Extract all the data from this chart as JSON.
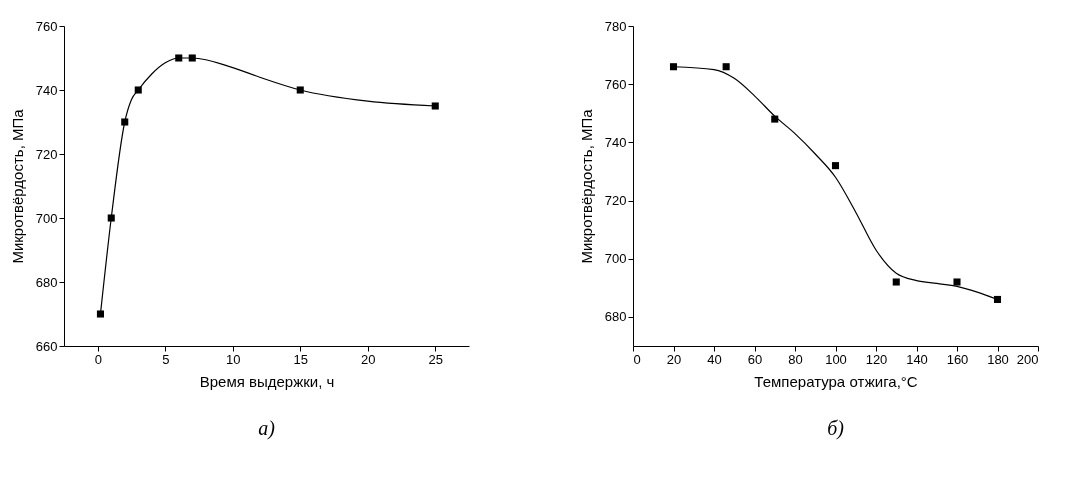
{
  "chart_data": [
    {
      "type": "scatter",
      "xlabel": "Время выдержки, ч",
      "ylabel": "Микротвёрдость, МПа",
      "annotations": [
        "а)"
      ],
      "xlim": [
        -2.5,
        27.5
      ],
      "xticks": [
        0,
        5,
        10,
        15,
        20,
        25
      ],
      "ylim": [
        660,
        760
      ],
      "yticks": [
        660,
        680,
        700,
        720,
        740,
        760
      ],
      "grid": false,
      "series": [
        {
          "type": "line",
          "color": "#000000",
          "x": [
            0.2,
            1,
            2,
            2.5,
            3,
            4,
            5,
            6,
            7,
            10,
            12,
            15,
            20,
            25
          ],
          "values": [
            670,
            700,
            730,
            737,
            740,
            745,
            748.5,
            750,
            750,
            747,
            744,
            740,
            736.5,
            735
          ]
        },
        {
          "marker": "square",
          "color": "#000000",
          "x": [
            0.2,
            1,
            2,
            3,
            6,
            7,
            15,
            25
          ],
          "values": [
            670,
            700,
            730,
            740,
            750,
            750,
            740,
            735
          ]
        }
      ]
    },
    {
      "type": "scatter",
      "xlabel": "Температура отжига,°C",
      "ylabel": "Микротвёрдость, МПа",
      "annotations": [
        "б)"
      ],
      "xlim": [
        0,
        200
      ],
      "xticks": [
        0,
        20,
        40,
        60,
        80,
        100,
        120,
        140,
        160,
        180,
        200
      ],
      "ylim": [
        670,
        780
      ],
      "yticks": [
        680,
        700,
        720,
        740,
        760,
        780
      ],
      "grid": false,
      "series": [
        {
          "type": "line",
          "color": "#000000",
          "x": [
            20,
            40,
            50,
            60,
            70,
            80,
            90,
            100,
            110,
            120,
            130,
            140,
            150,
            160,
            170,
            180
          ],
          "values": [
            766,
            765,
            762,
            756,
            749,
            743,
            736,
            728,
            716,
            703,
            695,
            692.5,
            691.5,
            690.5,
            688.5,
            686
          ]
        },
        {
          "marker": "square",
          "color": "#000000",
          "x": [
            20,
            46,
            70,
            100,
            130,
            160,
            180
          ],
          "values": [
            766,
            766,
            748,
            732,
            692,
            692,
            686
          ]
        }
      ]
    }
  ]
}
